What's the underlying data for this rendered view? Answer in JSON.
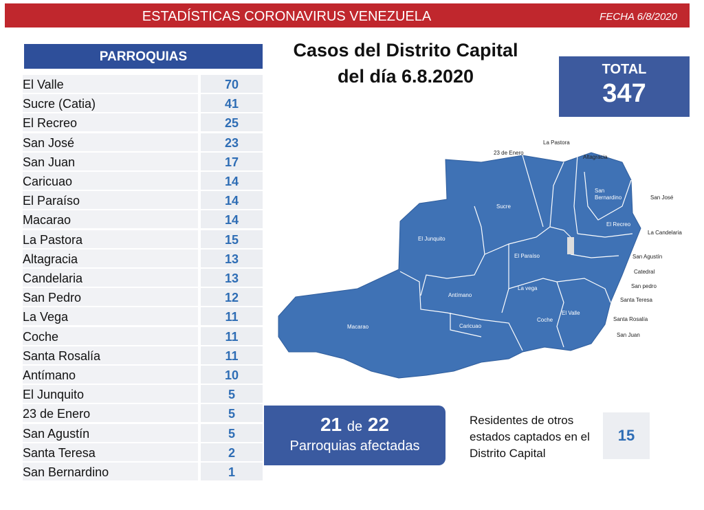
{
  "header": {
    "title": "ESTADÍSTICAS CORONAVIRUS VENEZUELA",
    "date": "FECHA 6/8/2020"
  },
  "table": {
    "header": "PARROQUIAS",
    "rows": [
      [
        "El Valle",
        70
      ],
      [
        "Sucre (Catia)",
        41
      ],
      [
        "El Recreo",
        25
      ],
      [
        "San José",
        23
      ],
      [
        "San Juan",
        17
      ],
      [
        "Caricuao",
        14
      ],
      [
        "El Paraíso",
        14
      ],
      [
        "Macarao",
        14
      ],
      [
        "La Pastora",
        15
      ],
      [
        "Altagracia",
        13
      ],
      [
        "Candelaria",
        13
      ],
      [
        "San Pedro",
        12
      ],
      [
        "La Vega",
        11
      ],
      [
        "Coche",
        11
      ],
      [
        "Santa Rosalía",
        11
      ],
      [
        "Antímano",
        10
      ],
      [
        "El Junquito",
        5
      ],
      [
        "23 de Enero",
        5
      ],
      [
        "San Agustín",
        5
      ],
      [
        "Santa Teresa",
        2
      ],
      [
        "San Bernardino",
        1
      ]
    ]
  },
  "map": {
    "title_lines": [
      "Casos del Distrito Capital",
      "del día 6.8.2020"
    ],
    "labels": [
      "Macarao",
      "El Junquito",
      "Sucre",
      "Antímano",
      "Caricuao",
      "Coche",
      "El Valle",
      "La vega",
      "El Paraíso",
      "San Bernardino",
      "El Recreo",
      "23 de Enero",
      "La Pastora",
      "Altagracia",
      "San José",
      "La Candelaria",
      "San Agustín",
      "Catedral",
      "San pedro",
      "Santa Teresa",
      "Santa Rosalía",
      "San Juan"
    ]
  },
  "total": {
    "label": "TOTAL",
    "value": 347
  },
  "affected": {
    "count": 21,
    "joiner": "de",
    "total": 22,
    "label": "Parroquias afectadas"
  },
  "residents": {
    "lines": [
      "Residentes de otros",
      "estados captados en el",
      "Distrito Capital"
    ],
    "value": 15
  }
}
